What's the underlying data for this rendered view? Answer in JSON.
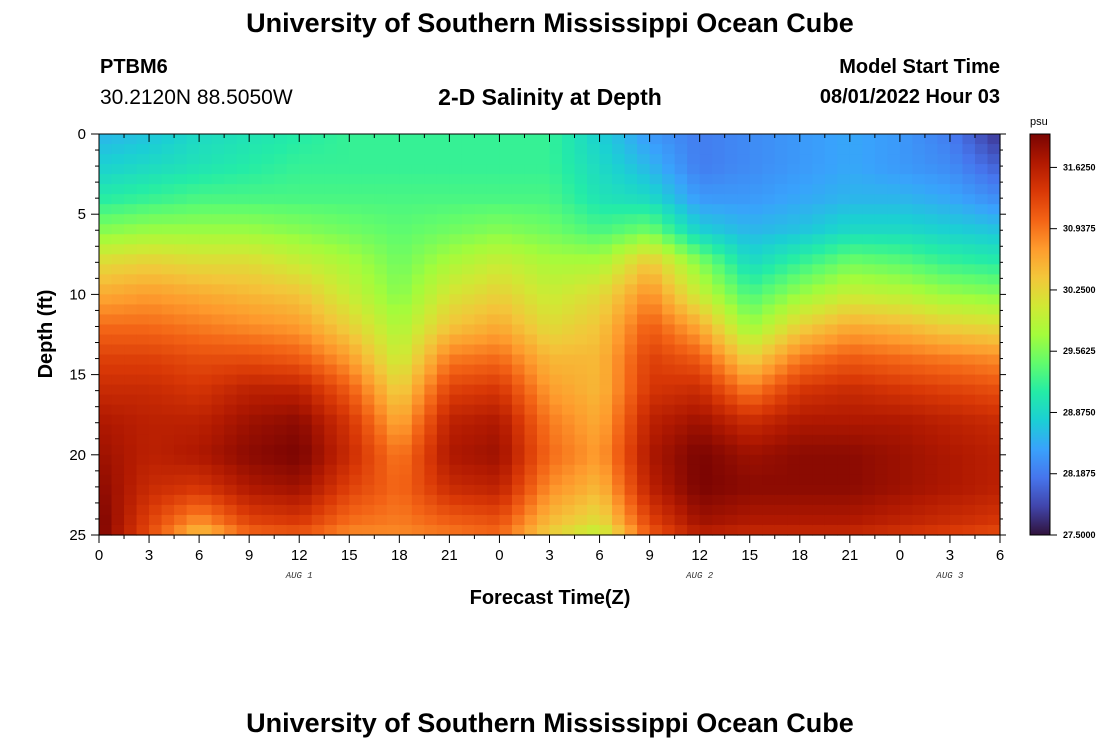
{
  "header": {
    "title": "University of Southern Mississippi Ocean Cube",
    "station": "PTBM6",
    "coords": "30.2120N  88.5050W",
    "subtitle": "2-D Salinity at Depth",
    "model_start_label": "Model Start Time",
    "model_start_value": "08/01/2022 Hour 03"
  },
  "footer": {
    "title": "University of Southern Mississippi Ocean Cube"
  },
  "chart_data": {
    "type": "heatmap",
    "title": "2-D Salinity at Depth",
    "xlabel": "Forecast Time(Z)",
    "ylabel": "Depth (ft)",
    "x_ticks": [
      "0",
      "3",
      "6",
      "9",
      "12",
      "15",
      "18",
      "21",
      "0",
      "3",
      "6",
      "9",
      "12",
      "15",
      "18",
      "21",
      "0",
      "3",
      "6"
    ],
    "x_hours": [
      0,
      54
    ],
    "date_labels": [
      {
        "label": "AUG 1",
        "hour": 12
      },
      {
        "label": "AUG 2",
        "hour": 36
      },
      {
        "label": "AUG 3",
        "hour": 51
      }
    ],
    "y_ticks": [
      0,
      5,
      10,
      15,
      20,
      25
    ],
    "ylim": [
      0,
      25
    ],
    "colorbar": {
      "unit": "psu",
      "min": 27.5,
      "max": 32.0,
      "labels": [
        "31.6250",
        "30.9375",
        "30.2500",
        "29.5625",
        "28.8750",
        "28.1875",
        "27.5000"
      ],
      "colors": [
        "#30123b",
        "#4145ab",
        "#4675ed",
        "#39a2fc",
        "#1bcfd4",
        "#24eca6",
        "#61fc6c",
        "#a4fc3b",
        "#d1e834",
        "#f3c63a",
        "#fe9b2d",
        "#f36315",
        "#d93806",
        "#b11901",
        "#7a0402"
      ]
    },
    "depth_profile_ft": [
      0,
      2,
      4,
      6,
      8,
      10,
      12,
      14,
      16,
      18,
      20,
      22,
      24,
      25
    ],
    "series_note": "Salinity (psu) by forecast hour (rows) and depth (columns matching depth_profile_ft)",
    "grid_hours": [
      0,
      3,
      6,
      9,
      12,
      15,
      18,
      21,
      24,
      27,
      30,
      33,
      36,
      39,
      42,
      45,
      48,
      51,
      54
    ],
    "values": [
      [
        28.6,
        28.8,
        29.1,
        29.6,
        30.2,
        30.6,
        31.0,
        31.3,
        31.5,
        31.7,
        31.8,
        31.9,
        32.0,
        32.0
      ],
      [
        28.7,
        28.9,
        29.2,
        29.7,
        30.3,
        30.7,
        31.0,
        31.3,
        31.5,
        31.6,
        31.6,
        31.5,
        31.3,
        31.2
      ],
      [
        28.9,
        29.0,
        29.3,
        29.7,
        30.2,
        30.6,
        30.9,
        31.2,
        31.4,
        31.6,
        31.7,
        31.4,
        30.8,
        30.4
      ],
      [
        29.0,
        29.1,
        29.3,
        29.7,
        30.2,
        30.5,
        30.8,
        31.2,
        31.6,
        31.8,
        31.9,
        31.7,
        31.3,
        31.0
      ],
      [
        29.1,
        29.2,
        29.3,
        29.6,
        30.0,
        30.4,
        30.7,
        31.1,
        31.6,
        31.9,
        32.0,
        31.8,
        31.4,
        31.1
      ],
      [
        29.2,
        29.2,
        29.3,
        29.5,
        29.8,
        30.0,
        30.3,
        30.7,
        31.1,
        31.4,
        31.5,
        31.3,
        31.0,
        30.8
      ],
      [
        29.2,
        29.2,
        29.3,
        29.4,
        29.5,
        29.6,
        29.8,
        30.0,
        30.3,
        30.6,
        30.9,
        31.0,
        30.9,
        30.8
      ],
      [
        29.2,
        29.2,
        29.3,
        29.5,
        29.8,
        30.1,
        30.4,
        30.9,
        31.3,
        31.6,
        31.7,
        31.5,
        31.1,
        30.9
      ],
      [
        29.2,
        29.2,
        29.3,
        29.6,
        30.0,
        30.3,
        30.6,
        31.0,
        31.4,
        31.7,
        31.8,
        31.6,
        31.2,
        31.0
      ],
      [
        29.2,
        29.2,
        29.3,
        29.5,
        29.8,
        30.0,
        30.2,
        30.5,
        30.7,
        30.9,
        31.0,
        30.8,
        30.5,
        30.3
      ],
      [
        28.8,
        28.9,
        29.0,
        29.3,
        29.8,
        30.2,
        30.4,
        30.5,
        30.5,
        30.6,
        30.7,
        30.5,
        30.2,
        29.9
      ],
      [
        28.4,
        28.6,
        28.9,
        29.5,
        30.4,
        30.8,
        31.1,
        31.3,
        31.4,
        31.6,
        31.7,
        31.6,
        31.3,
        31.1
      ],
      [
        28.2,
        28.2,
        28.4,
        28.8,
        29.6,
        30.0,
        30.6,
        31.1,
        31.5,
        31.8,
        32.0,
        32.0,
        31.8,
        31.6
      ],
      [
        28.3,
        28.3,
        28.4,
        28.6,
        28.9,
        29.3,
        29.7,
        30.3,
        30.9,
        31.5,
        31.8,
        31.9,
        31.7,
        31.5
      ],
      [
        28.4,
        28.4,
        28.5,
        28.7,
        29.2,
        29.7,
        30.3,
        30.9,
        31.4,
        31.7,
        31.9,
        31.9,
        31.7,
        31.5
      ],
      [
        28.5,
        28.5,
        28.6,
        28.9,
        29.5,
        30.0,
        30.6,
        31.1,
        31.5,
        31.7,
        31.9,
        31.9,
        31.7,
        31.5
      ],
      [
        28.4,
        28.4,
        28.6,
        28.9,
        29.4,
        29.9,
        30.5,
        31.0,
        31.4,
        31.7,
        31.8,
        31.8,
        31.6,
        31.4
      ],
      [
        28.2,
        28.3,
        28.5,
        28.8,
        29.2,
        29.7,
        30.3,
        30.9,
        31.3,
        31.6,
        31.7,
        31.7,
        31.5,
        31.3
      ],
      [
        27.7,
        28.0,
        28.3,
        28.7,
        29.1,
        29.6,
        30.2,
        30.8,
        31.2,
        31.5,
        31.6,
        31.6,
        31.4,
        31.2
      ]
    ]
  }
}
